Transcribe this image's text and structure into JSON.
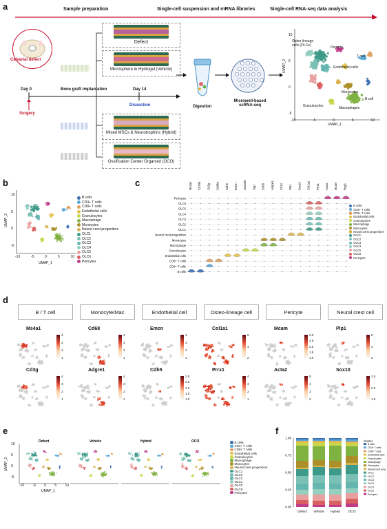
{
  "panels": {
    "a": "a",
    "b": "b",
    "c": "c",
    "d": "d",
    "e": "e",
    "f": "f"
  },
  "a": {
    "header": [
      "Sample preparation",
      "Single-cell suspension and mRNA libraries",
      "Single-cell RNA-seq data analysis"
    ],
    "calvarial_defect": "Calvarial defect",
    "day0": "Day 0",
    "day14": "Day 14",
    "bone_graft": "Bone graft implantation",
    "dissection": "Dissection",
    "surgery": "Surgery",
    "digestion": "Digestion",
    "microwell": "Microwell-based scRNA-seq",
    "conditions": [
      "Defect",
      "Microsphere in Hydrogel (Vehicle)",
      "Mixed MSCs & Neurotrophins (Hybrid)",
      "Ossification Center Organoid (OCO)"
    ],
    "umap_labels": [
      "Osteo-lineage cells (OLCs)",
      "Pericyte",
      "T cell",
      "Endothelial cells",
      "B cell",
      "Monocytes",
      "Granulocytes",
      "Macrophages"
    ],
    "xlabel": "UMAP_1",
    "ylabel": "UMAP_2",
    "xticks": [
      "-10",
      "-5",
      "0",
      "5",
      "10"
    ],
    "yticks": [
      "10",
      "5",
      "0",
      "-5"
    ]
  },
  "b": {
    "legend": [
      "B cells",
      "CD4+ T cells",
      "CD8+ T cells",
      "Endothelial cells",
      "Granulocytes",
      "Macrophage",
      "Monocytes",
      "Neural crest progenitors",
      "OLC1",
      "OLC2",
      "OLC3",
      "OLC4",
      "OLC5",
      "OLC6",
      "Pericytes"
    ],
    "colors": [
      "#3a6fb0",
      "#5aa7d6",
      "#e0a060",
      "#e3c24a",
      "#c7d64b",
      "#7fb241",
      "#ad8f2a",
      "#d8b24d",
      "#3d9a8a",
      "#7ac0b5",
      "#66b6b0",
      "#95cfc0",
      "#e9a0a0",
      "#d96060",
      "#c03c8a"
    ],
    "xlabel": "UMAP_1",
    "ylabel": "UMAP_2",
    "xticks": [
      "-10",
      "-5",
      "0",
      "5",
      "10"
    ],
    "yticks": [
      "10",
      "5",
      "0",
      "-5"
    ]
  },
  "c": {
    "genes": [
      "Ms4a1",
      "Cd79b",
      "Cd3g",
      "Cd8b1",
      "Cdh5",
      "Emcn",
      "S100a9",
      "Ngp",
      "Cd68",
      "Adgre1",
      "Cd14",
      "Plp1",
      "Sox10",
      "Col1a1",
      "Prrx1",
      "Acta2",
      "Mcam",
      "Rsg5"
    ],
    "rows": [
      "Pericytes",
      "OLC6",
      "OLC5",
      "OLC4",
      "OLC3",
      "OLC2",
      "OLC1",
      "Neural crest progenitors",
      "Monocytes",
      "Macrophage",
      "Granulocytes",
      "Endothelial cells",
      "CD8+ T cells",
      "CD4+ T cells",
      "B cells"
    ],
    "legend": [
      "B cells",
      "CD4+ T cells",
      "CD8+ T cells",
      "Endothelial cells",
      "Granulocytes",
      "Macrophage",
      "Monocytes",
      "Neural crest progenitors",
      "OLC1",
      "OLC2",
      "OLC3",
      "OLC4",
      "OLC5",
      "OLC6",
      "Pericytes"
    ]
  },
  "d": {
    "headers": [
      "B / T cell",
      "Monocyte/Mac",
      "Endothelial cell",
      "Osteo-lineage cell",
      "Pericyte",
      "Neural crest cell"
    ],
    "row1": [
      "Ms4a1",
      "Cd68",
      "Emcn",
      "Col1a1",
      "Mcam",
      "Plp1"
    ],
    "row2": [
      "Cd3g",
      "Adgre1",
      "Cdh5",
      "Prrx1",
      "Acta2",
      "Sox10"
    ],
    "scales1": [
      [
        "4",
        "3",
        "2",
        "1"
      ],
      [
        "4",
        "3",
        "2",
        "1"
      ],
      [
        "4",
        "3",
        "2",
        "1"
      ],
      [
        "6",
        "4",
        "2"
      ],
      [
        "3.0",
        "2.5",
        "2.0",
        "1.5",
        "1.0"
      ],
      [
        "6",
        "4",
        "2"
      ]
    ],
    "scales2": [
      [
        "4",
        "3",
        "2",
        "1"
      ],
      [
        "4",
        "3",
        "2",
        "1"
      ],
      [
        "3.0",
        "2.5",
        "2.0",
        "1.5",
        "1.0"
      ],
      [
        "4",
        "3",
        "2",
        "1"
      ],
      [
        "5",
        "4",
        "3",
        "2"
      ],
      [
        "2.5",
        "2.0",
        "1.5"
      ]
    ]
  },
  "e": {
    "titles": [
      "Defect",
      "Vehicle",
      "Hybrid",
      "OCO"
    ],
    "legend": [
      "B cells",
      "CD4+ T cells",
      "CD8+ T cells",
      "Endothelial cells",
      "Granulocytes",
      "Macrophage",
      "Monocytes",
      "Neural crest progenitors",
      "OLC1",
      "OLC2",
      "OLC3",
      "OLC4",
      "OLC5",
      "OLC6",
      "Pericytes"
    ],
    "xlabel": "UMAP_1",
    "ylabel": "UMAP_2",
    "xticks": [
      "-10",
      "-5",
      "0",
      "5",
      "10"
    ],
    "yticks": [
      "10",
      "5",
      "0",
      "-5"
    ]
  },
  "chart_data": {
    "type": "bar",
    "stacked": true,
    "categories": [
      "Defect",
      "Vehicle",
      "Hybrid",
      "OCO"
    ],
    "ylim": [
      0,
      1
    ],
    "yticks": [
      "1.00",
      "0.75",
      "0.50",
      "0.25",
      "0.00"
    ],
    "legend_title": "Cluster",
    "series": [
      {
        "name": "B cells",
        "color": "#3a6fb0",
        "values": [
          0.02,
          0.02,
          0.02,
          0.02
        ]
      },
      {
        "name": "CD4+ T cells",
        "color": "#5aa7d6",
        "values": [
          0.02,
          0.02,
          0.02,
          0.03
        ]
      },
      {
        "name": "CD8+ T cells",
        "color": "#e0a060",
        "values": [
          0.01,
          0.01,
          0.01,
          0.01
        ]
      },
      {
        "name": "Endothelial cells",
        "color": "#e3c24a",
        "values": [
          0.02,
          0.02,
          0.02,
          0.02
        ]
      },
      {
        "name": "Granulocytes",
        "color": "#c7d64b",
        "values": [
          0.04,
          0.05,
          0.04,
          0.04
        ]
      },
      {
        "name": "Macrophage",
        "color": "#7fb241",
        "values": [
          0.22,
          0.2,
          0.22,
          0.14
        ]
      },
      {
        "name": "Monocytes",
        "color": "#ad8f2a",
        "values": [
          0.1,
          0.08,
          0.09,
          0.1
        ]
      },
      {
        "name": "Neural crest progenitors",
        "color": "#d8b24d",
        "values": [
          0.02,
          0.02,
          0.02,
          0.03
        ]
      },
      {
        "name": "OLC1",
        "color": "#3d9a8a",
        "values": [
          0.1,
          0.12,
          0.1,
          0.13
        ]
      },
      {
        "name": "OLC2",
        "color": "#7ac0b5",
        "values": [
          0.12,
          0.11,
          0.12,
          0.12
        ]
      },
      {
        "name": "OLC3",
        "color": "#66b6b0",
        "values": [
          0.08,
          0.09,
          0.08,
          0.09
        ]
      },
      {
        "name": "OLC4",
        "color": "#95cfc0",
        "values": [
          0.07,
          0.08,
          0.08,
          0.07
        ]
      },
      {
        "name": "OLC5",
        "color": "#e9a0a0",
        "values": [
          0.08,
          0.09,
          0.09,
          0.08
        ]
      },
      {
        "name": "OLC6",
        "color": "#d96060",
        "values": [
          0.06,
          0.06,
          0.06,
          0.07
        ]
      },
      {
        "name": "Pericytes",
        "color": "#c03c8a",
        "values": [
          0.04,
          0.03,
          0.03,
          0.05
        ]
      }
    ]
  }
}
